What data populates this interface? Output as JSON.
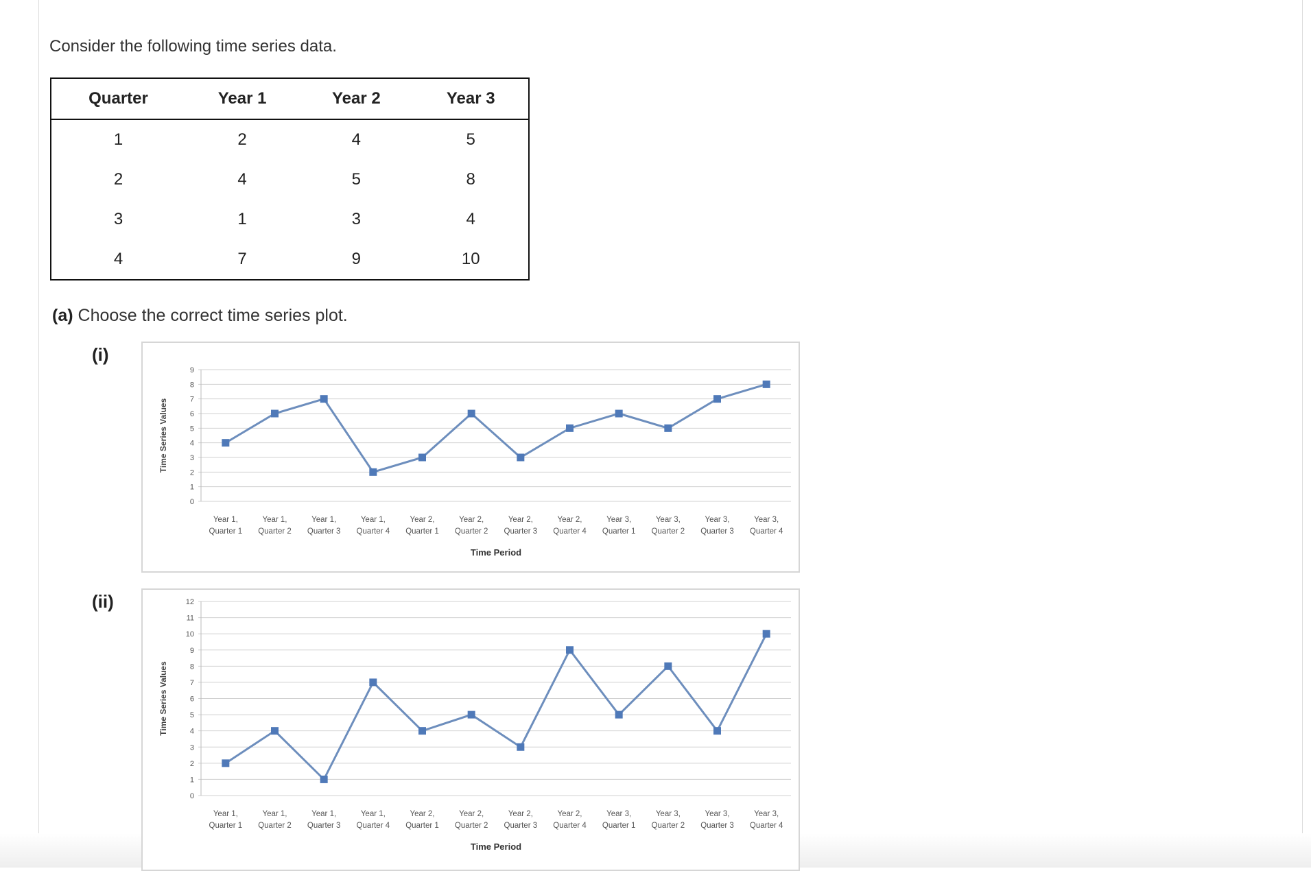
{
  "intro": "Consider the following time series data.",
  "table": {
    "headers": [
      "Quarter",
      "Year 1",
      "Year 2",
      "Year 3"
    ],
    "rows": [
      [
        "1",
        "2",
        "4",
        "5"
      ],
      [
        "2",
        "4",
        "5",
        "8"
      ],
      [
        "3",
        "1",
        "3",
        "4"
      ],
      [
        "4",
        "7",
        "9",
        "10"
      ]
    ]
  },
  "question": {
    "part": "(a)",
    "text": "Choose the correct time series plot."
  },
  "options": [
    {
      "label": "(i)"
    },
    {
      "label": "(ii)"
    }
  ],
  "colors": {
    "line": "#6d8ebd",
    "marker": "#4f79b8",
    "grid": "#d0d0d0",
    "axis_text": "#555555"
  },
  "chart_data": [
    {
      "type": "line",
      "xlabel": "Time Period",
      "ylabel": "Time Series Values",
      "ylim": [
        0,
        9
      ],
      "yticks": [
        0,
        1,
        2,
        3,
        4,
        5,
        6,
        7,
        8,
        9
      ],
      "grid": true,
      "legend": "none",
      "categories": [
        [
          "Year 1,",
          "Quarter 1"
        ],
        [
          "Year 1,",
          "Quarter 2"
        ],
        [
          "Year 1,",
          "Quarter 3"
        ],
        [
          "Year 1,",
          "Quarter 4"
        ],
        [
          "Year 2,",
          "Quarter 1"
        ],
        [
          "Year 2,",
          "Quarter 2"
        ],
        [
          "Year 2,",
          "Quarter 3"
        ],
        [
          "Year 2,",
          "Quarter 4"
        ],
        [
          "Year 3,",
          "Quarter 1"
        ],
        [
          "Year 3,",
          "Quarter 2"
        ],
        [
          "Year 3,",
          "Quarter 3"
        ],
        [
          "Year 3,",
          "Quarter 4"
        ]
      ],
      "values": [
        4,
        6,
        7,
        2,
        3,
        6,
        3,
        5,
        6,
        5,
        7,
        8
      ]
    },
    {
      "type": "line",
      "xlabel": "Time Period",
      "ylabel": "Time Series Values",
      "ylim": [
        0,
        12
      ],
      "yticks": [
        0,
        1,
        2,
        3,
        4,
        5,
        6,
        7,
        8,
        9,
        10,
        11,
        12
      ],
      "grid": true,
      "legend": "none",
      "categories": [
        [
          "Year 1,",
          "Quarter 1"
        ],
        [
          "Year 1,",
          "Quarter 2"
        ],
        [
          "Year 1,",
          "Quarter 3"
        ],
        [
          "Year 1,",
          "Quarter 4"
        ],
        [
          "Year 2,",
          "Quarter 1"
        ],
        [
          "Year 2,",
          "Quarter 2"
        ],
        [
          "Year 2,",
          "Quarter 3"
        ],
        [
          "Year 2,",
          "Quarter 4"
        ],
        [
          "Year 3,",
          "Quarter 1"
        ],
        [
          "Year 3,",
          "Quarter 2"
        ],
        [
          "Year 3,",
          "Quarter 3"
        ],
        [
          "Year 3,",
          "Quarter 4"
        ]
      ],
      "values": [
        2,
        4,
        1,
        7,
        4,
        5,
        3,
        9,
        5,
        8,
        4,
        10
      ]
    }
  ]
}
